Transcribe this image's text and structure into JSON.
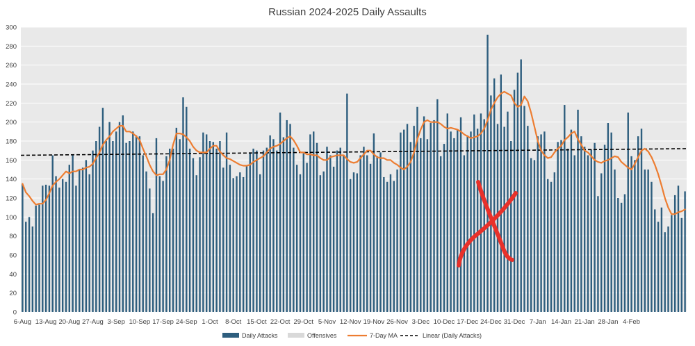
{
  "chart_data": {
    "type": "bar",
    "title": "Russian 2024-2025 Daily Assaults",
    "xlabel": "",
    "ylabel": "",
    "ylim": [
      0,
      300
    ],
    "y_ticks": [
      0,
      20,
      40,
      60,
      80,
      100,
      120,
      140,
      160,
      180,
      200,
      220,
      240,
      260,
      280,
      300
    ],
    "grid": true,
    "legend_position": "bottom",
    "x_tick_labels": [
      "6-Aug",
      "13-Aug",
      "20-Aug",
      "27-Aug",
      "3-Sep",
      "10-Sep",
      "17-Sep",
      "24-Sep",
      "1-Oct",
      "8-Oct",
      "15-Oct",
      "22-Oct",
      "29-Oct",
      "5-Nov",
      "12-Nov",
      "19-Nov",
      "26-Nov",
      "3-Dec",
      "10-Dec",
      "17-Dec",
      "24-Dec",
      "31-Dec",
      "7-Jan",
      "14-Jan",
      "21-Jan",
      "28-Jan",
      "4-Feb"
    ],
    "x_start_date": "6-Aug",
    "series": [
      {
        "name": "Daily Attacks",
        "kind": "bar",
        "color": "#2E5E7E",
        "values": [
          135,
          95,
          100,
          90,
          112,
          113,
          133,
          134,
          133,
          165,
          143,
          131,
          140,
          137,
          155,
          165,
          133,
          150,
          152,
          160,
          145,
          170,
          180,
          195,
          215,
          180,
          200,
          180,
          190,
          200,
          207,
          178,
          180,
          190,
          186,
          185,
          165,
          148,
          130,
          104,
          183,
          143,
          138,
          164,
          172,
          172,
          194,
          182,
          226,
          216,
          172,
          162,
          144,
          163,
          189,
          187,
          180,
          179,
          172,
          180,
          152,
          189,
          155,
          141,
          143,
          147,
          142,
          154,
          168,
          172,
          170,
          145,
          170,
          173,
          186,
          182,
          170,
          210,
          184,
          202,
          198,
          173,
          155,
          145,
          167,
          157,
          187,
          190,
          178,
          144,
          148,
          174,
          165,
          153,
          170,
          173,
          165,
          230,
          140,
          147,
          146,
          165,
          174,
          165,
          156,
          188,
          164,
          168,
          142,
          137,
          145,
          138,
          150,
          189,
          192,
          198,
          179,
          196,
          216,
          183,
          206,
          182,
          199,
          202,
          224,
          164,
          177,
          209,
          190,
          183,
          192,
          205,
          165,
          186,
          190,
          208,
          193,
          209,
          203,
          292,
          228,
          246,
          198,
          250,
          195,
          211,
          180,
          234,
          252,
          266,
          217,
          196,
          162,
          160,
          185,
          187,
          190,
          140,
          137,
          147,
          179,
          181,
          218,
          172,
          192,
          165,
          213,
          185,
          174,
          165,
          171,
          178,
          122,
          146,
          176,
          199,
          189,
          150,
          120,
          115,
          124,
          210,
          164,
          160,
          185,
          193,
          150,
          150,
          137,
          108,
          95,
          110,
          84,
          90,
          102,
          123,
          133,
          99,
          127
        ]
      },
      {
        "name": "Offensives",
        "kind": "bar",
        "color": "#D9D9D9",
        "values": []
      },
      {
        "name": "7-Day MA",
        "kind": "line",
        "color": "#ED7D31",
        "values": [
          135,
          126,
          122,
          117,
          113,
          114,
          114,
          118,
          125,
          133,
          137,
          140,
          144,
          148,
          146,
          148,
          148,
          150,
          150,
          152,
          153,
          156,
          162,
          168,
          176,
          181,
          185,
          190,
          193,
          196,
          196,
          190,
          190,
          188,
          185,
          181,
          172,
          164,
          155,
          148,
          144,
          145,
          145,
          150,
          160,
          176,
          188,
          188,
          187,
          184,
          180,
          174,
          170,
          168,
          168,
          168,
          172,
          175,
          175,
          169,
          165,
          162,
          161,
          159,
          157,
          155,
          154,
          154,
          155,
          158,
          160,
          162,
          164,
          168,
          172,
          174,
          175,
          177,
          180,
          183,
          185,
          181,
          175,
          168,
          168,
          166,
          166,
          165,
          165,
          162,
          160,
          160,
          163,
          164,
          165,
          165,
          165,
          161,
          158,
          157,
          158,
          162,
          166,
          170,
          170,
          166,
          163,
          162,
          162,
          160,
          160,
          157,
          155,
          152,
          150,
          153,
          158,
          168,
          182,
          192,
          200,
          202,
          200,
          200,
          200,
          198,
          195,
          193,
          194,
          193,
          192,
          190,
          187,
          185,
          183,
          184,
          185,
          188,
          193,
          202,
          213,
          220,
          226,
          230,
          232,
          230,
          228,
          220,
          216,
          218,
          227,
          222,
          210,
          195,
          180,
          170,
          165,
          162,
          163,
          168,
          172,
          175,
          181,
          184,
          188,
          190,
          182,
          176,
          170,
          168,
          164,
          160,
          158,
          157,
          159,
          160,
          162,
          164,
          163,
          158,
          155,
          152,
          150,
          156,
          163,
          170,
          172,
          169,
          163,
          155,
          145,
          133,
          120,
          110,
          103,
          103,
          105,
          106,
          108
        ]
      },
      {
        "name": "Linear (Daily Attacks)",
        "kind": "trendline",
        "color": "#000000",
        "start": 165,
        "end": 172
      }
    ]
  },
  "annotation": {
    "kind": "hand-drawn cross mark",
    "color": "#E8312A"
  }
}
